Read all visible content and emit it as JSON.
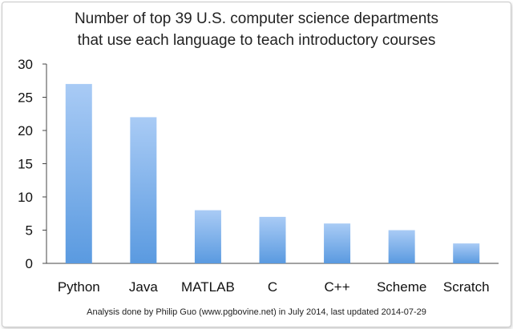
{
  "chart_data": {
    "type": "bar",
    "title_lines": [
      "Number of top 39 U.S. computer science departments",
      "that use each language to teach introductory courses"
    ],
    "categories": [
      "Python",
      "Java",
      "MATLAB",
      "C",
      "C++",
      "Scheme",
      "Scratch"
    ],
    "values": [
      27,
      22,
      8,
      7,
      6,
      5,
      3
    ],
    "ylim": [
      0,
      30
    ],
    "yticks": [
      0,
      5,
      10,
      15,
      20,
      25,
      30
    ],
    "xlabel": "",
    "ylabel": "",
    "grid": false,
    "legend": "none",
    "bar_color_top": "#a9cbf5",
    "bar_color_bottom": "#5a9ae0",
    "footnote": "Analysis done by Philip Guo (www.pgbovine.net) in July 2014, last updated 2014-07-29"
  }
}
